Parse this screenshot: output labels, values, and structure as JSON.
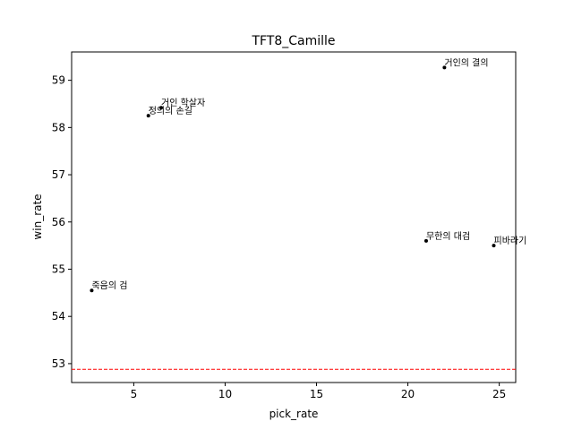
{
  "chart_data": {
    "type": "scatter",
    "title": "TFT8_Camille",
    "xlabel": "pick_rate",
    "ylabel": "win_rate",
    "xlim": [
      1.6,
      25.9
    ],
    "ylim": [
      52.6,
      59.6
    ],
    "xticks": [
      5,
      10,
      15,
      20,
      25
    ],
    "yticks": [
      53,
      54,
      55,
      56,
      57,
      58,
      59
    ],
    "grid": false,
    "points": [
      {
        "label": "거인의 결의",
        "x": 22.0,
        "y": 59.27
      },
      {
        "label": "거인 학살자",
        "x": 6.5,
        "y": 58.42
      },
      {
        "label": "정의의 손길",
        "x": 5.8,
        "y": 58.25
      },
      {
        "label": "무한의 대검",
        "x": 21.0,
        "y": 55.6
      },
      {
        "label": "피바라기",
        "x": 24.7,
        "y": 55.5
      },
      {
        "label": "죽음의 검",
        "x": 2.7,
        "y": 54.55
      }
    ],
    "reference_line": {
      "y": 52.88,
      "color": "#ff0000",
      "style": "dashed"
    },
    "point_color": "#000000"
  }
}
